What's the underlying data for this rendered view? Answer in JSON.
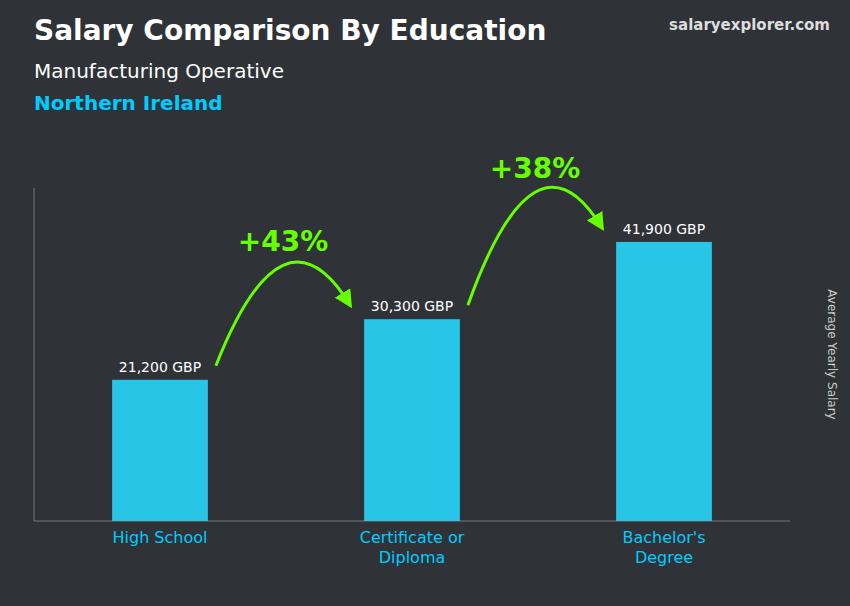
{
  "chart_data": {
    "type": "bar",
    "title": "Salary Comparison By Education",
    "subtitle": "Manufacturing Operative",
    "location": "Northern Ireland",
    "source": "salaryexplorer.com",
    "ylabel": "Average Yearly Salary",
    "categories": [
      "High School",
      "Certificate or\nDiploma",
      "Bachelor's\nDegree"
    ],
    "values": [
      21200,
      30300,
      41900
    ],
    "value_labels": [
      "21,200 GBP",
      "30,300 GBP",
      "41,900 GBP"
    ],
    "annotations": [
      "+43%",
      "+38%"
    ],
    "color": "#29c5e6",
    "ylim": [
      0,
      50000
    ],
    "grid": false,
    "tick_labels": false,
    "data_labels": true
  }
}
